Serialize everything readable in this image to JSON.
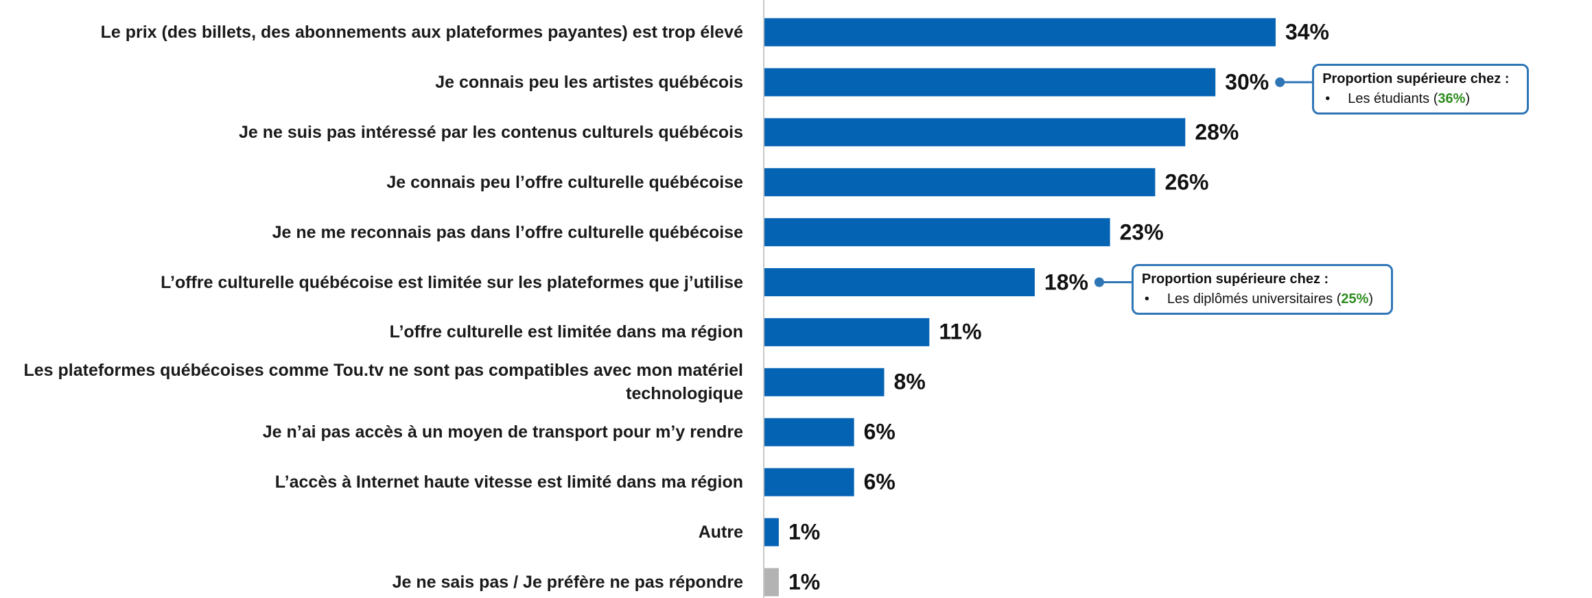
{
  "chart_data": {
    "type": "bar",
    "orientation": "horizontal",
    "categories": [
      "Le prix (des billets, des abonnements aux plateformes payantes) est trop élevé",
      "Je connais peu les artistes québécois",
      "Je ne suis pas intéressé par les contenus culturels québécois",
      "Je connais peu l’offre culturelle québécoise",
      "Je ne me reconnais pas dans l’offre culturelle québécoise",
      "L’offre culturelle québécoise est limitée sur les plateformes que j’utilise",
      "L’offre culturelle est limitée dans ma région",
      "Les plateformes québécoises comme Tou.tv ne sont pas compatibles avec mon matériel technologique",
      "Je n’ai pas accès à un moyen de transport pour m’y rendre",
      "L’accès à Internet haute vitesse est limité dans ma région",
      "Autre",
      "Je ne sais pas / Je préfère ne pas répondre"
    ],
    "values": [
      34,
      30,
      28,
      26,
      23,
      18,
      11,
      8,
      6,
      6,
      1,
      1
    ],
    "value_labels": [
      "34%",
      "30%",
      "28%",
      "26%",
      "23%",
      "18%",
      "11%",
      "8%",
      "6%",
      "6%",
      "1%",
      "1%"
    ],
    "colors": [
      "#0563b4",
      "#0563b4",
      "#0563b4",
      "#0563b4",
      "#0563b4",
      "#0563b4",
      "#0563b4",
      "#0563b4",
      "#0563b4",
      "#0563b4",
      "#0563b4",
      "#b3b3b3"
    ],
    "annotations": [
      {
        "target": "Je connais peu les artistes québécois",
        "title": "Proportion supérieure chez :",
        "group": "Les étudiants",
        "value": 36,
        "value_label": "36%"
      },
      {
        "target": "L’offre culturelle québécoise est limitée sur les plateformes que j’utilise",
        "title": "Proportion supérieure chez :",
        "group": "Les diplômés universitaires",
        "value": 25,
        "value_label": "25%"
      }
    ]
  }
}
